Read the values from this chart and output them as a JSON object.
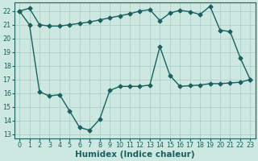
{
  "xlabel": "Humidex (Indice chaleur)",
  "bg_color": "#cce8e0",
  "line_color": "#1a6060",
  "grid_color": "#a8ccc8",
  "xlim": [
    -0.5,
    23.5
  ],
  "ylim": [
    12.7,
    22.6
  ],
  "yticks": [
    13,
    14,
    15,
    16,
    17,
    18,
    19,
    20,
    21,
    22
  ],
  "xticks": [
    0,
    1,
    2,
    3,
    4,
    5,
    6,
    7,
    8,
    9,
    10,
    11,
    12,
    13,
    14,
    15,
    16,
    17,
    18,
    19,
    20,
    21,
    22,
    23
  ],
  "curve1_x": [
    0,
    1,
    2,
    3,
    4,
    5,
    6,
    7,
    8,
    9,
    10,
    11,
    12,
    13,
    14,
    15,
    16,
    17,
    18,
    19,
    20,
    21,
    22,
    23
  ],
  "curve1_y": [
    22.0,
    22.2,
    21.0,
    20.9,
    20.9,
    21.0,
    21.1,
    21.2,
    21.35,
    21.5,
    21.65,
    21.8,
    22.0,
    22.1,
    21.3,
    21.85,
    22.05,
    21.95,
    21.75,
    22.35,
    20.6,
    20.5,
    18.6,
    17.0
  ],
  "curve2_x": [
    0,
    1,
    2,
    3,
    4,
    5,
    6,
    7,
    8,
    9,
    10,
    11,
    12,
    13,
    14,
    15,
    16,
    17,
    18,
    19,
    20,
    21,
    22,
    23
  ],
  "curve2_y": [
    22.0,
    21.0,
    16.1,
    15.8,
    15.9,
    14.7,
    13.5,
    13.3,
    14.1,
    16.2,
    16.5,
    16.5,
    16.5,
    16.6,
    19.4,
    17.3,
    16.5,
    16.55,
    16.6,
    16.7,
    16.7,
    16.75,
    16.8,
    17.0
  ],
  "marker_size": 2.5,
  "linewidth": 1.0,
  "tick_fontsize": 5.8,
  "xlabel_fontsize": 7.5
}
